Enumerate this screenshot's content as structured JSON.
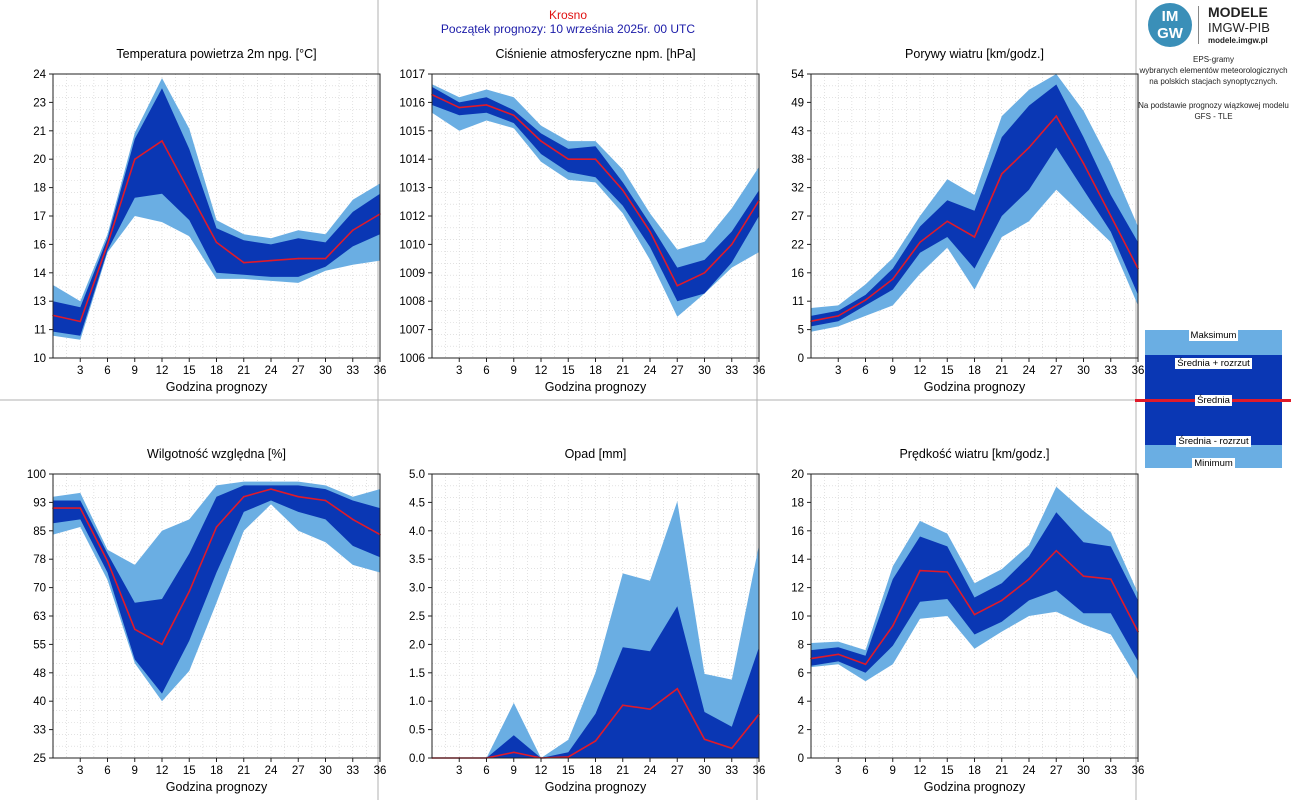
{
  "header": {
    "station": "Krosno",
    "forecast_start": "Początek prognozy: 10 września 2025r. 00 UTC"
  },
  "logo": {
    "badge_top": "IM",
    "badge_bottom": "GW",
    "title": "MODELE",
    "subtitle": "IMGW-PIB",
    "url": "modele.imgw.pl"
  },
  "info": {
    "line1": "EPS-gramy",
    "line2": "wybranych elementów meteorologicznych",
    "line3": "na polskich stacjach  synoptycznych.",
    "line4": "Na podstawie prognozy wiązkowej modelu",
    "line5": "GFS - TLE"
  },
  "legend": {
    "max": "Maksimum",
    "mean_plus": "Średnia + rozrzut",
    "mean": "Średnia",
    "mean_minus": "Średnia - rozrzut",
    "min": "Minimum"
  },
  "colors": {
    "range": "#6aaee3",
    "spread": "#0a37b4",
    "mean": "#e01a2a"
  },
  "chart_data": [
    {
      "type": "area",
      "title": "Temperatura powietrza 2m npg. [°C]",
      "xlabel": "Godzina prognozy",
      "x": [
        0,
        3,
        6,
        9,
        12,
        15,
        18,
        21,
        24,
        27,
        30,
        33,
        36
      ],
      "xticks": [
        "3",
        "6",
        "9",
        "12",
        "15",
        "18",
        "21",
        "24",
        "27",
        "30",
        "33",
        "36"
      ],
      "ylim": [
        10,
        24
      ],
      "yticks": [
        "10",
        "11",
        "13",
        "14",
        "16",
        "17",
        "18",
        "20",
        "21",
        "23",
        "24"
      ],
      "series": [
        {
          "name": "Maksimum",
          "values": [
            13.6,
            12.8,
            16.1,
            21.1,
            23.8,
            21.3,
            16.8,
            16.1,
            15.9,
            16.3,
            16.1,
            17.8,
            18.6
          ]
        },
        {
          "name": "Średnia + rozrzut",
          "values": [
            12.8,
            12.5,
            15.9,
            20.8,
            23.3,
            20.3,
            16.4,
            15.8,
            15.6,
            15.9,
            15.7,
            17.2,
            18.1
          ]
        },
        {
          "name": "Średnia",
          "values": [
            12.1,
            11.8,
            15.6,
            19.8,
            20.7,
            18.2,
            15.7,
            14.7,
            14.8,
            14.9,
            14.9,
            16.3,
            17.1
          ]
        },
        {
          "name": "Średnia - rozrzut",
          "values": [
            11.3,
            11.1,
            15.3,
            17.9,
            18.1,
            16.8,
            14.2,
            14.1,
            14.0,
            14.0,
            14.5,
            15.5,
            16.1
          ]
        },
        {
          "name": "Minimum",
          "values": [
            11.1,
            10.9,
            15.2,
            17.0,
            16.7,
            16.0,
            13.9,
            13.9,
            13.8,
            13.7,
            14.3,
            14.6,
            14.8
          ]
        }
      ]
    },
    {
      "type": "area",
      "title": "Ciśnienie atmosferyczne npm. [hPa]",
      "xlabel": "Godzina prognozy",
      "x": [
        0,
        3,
        6,
        9,
        12,
        15,
        18,
        21,
        24,
        27,
        30,
        33,
        36
      ],
      "xticks": [
        "3",
        "6",
        "9",
        "12",
        "15",
        "18",
        "21",
        "24",
        "27",
        "30",
        "33",
        "36"
      ],
      "ylim": [
        1006,
        1017
      ],
      "yticks": [
        "1006",
        "1007",
        "1008",
        "1009",
        "1010",
        "1012",
        "1013",
        "1014",
        "1015",
        "1016",
        "1017"
      ],
      "series": [
        {
          "name": "Maksimum",
          "values": [
            1016.6,
            1016.1,
            1016.4,
            1016.1,
            1015.0,
            1014.4,
            1014.4,
            1013.3,
            1011.6,
            1010.2,
            1010.5,
            1011.8,
            1013.4
          ]
        },
        {
          "name": "Średnia + rozrzut",
          "values": [
            1016.5,
            1015.9,
            1016.1,
            1015.6,
            1014.7,
            1014.1,
            1014.2,
            1012.8,
            1011.2,
            1009.5,
            1009.8,
            1010.9,
            1012.5
          ]
        },
        {
          "name": "Średnia",
          "values": [
            1016.2,
            1015.7,
            1015.8,
            1015.4,
            1014.4,
            1013.7,
            1013.7,
            1012.5,
            1010.9,
            1008.8,
            1009.3,
            1010.4,
            1012.1
          ]
        },
        {
          "name": "Średnia - rozrzut",
          "values": [
            1015.8,
            1015.4,
            1015.5,
            1015.1,
            1013.9,
            1013.2,
            1013.0,
            1011.9,
            1010.3,
            1008.2,
            1008.5,
            1009.7,
            1011.5
          ]
        },
        {
          "name": "Minimum",
          "values": [
            1015.5,
            1014.8,
            1015.2,
            1014.9,
            1013.6,
            1012.9,
            1012.8,
            1011.6,
            1009.8,
            1007.6,
            1008.5,
            1009.5,
            1010.1
          ]
        }
      ]
    },
    {
      "type": "area",
      "title": "Porywy wiatru [km/godz.]",
      "xlabel": "Godzina prognozy",
      "x": [
        0,
        3,
        6,
        9,
        12,
        15,
        18,
        21,
        24,
        27,
        30,
        33,
        36
      ],
      "xticks": [
        "3",
        "6",
        "9",
        "12",
        "15",
        "18",
        "21",
        "24",
        "27",
        "30",
        "33",
        "36"
      ],
      "ylim": [
        0,
        54
      ],
      "yticks": [
        "0",
        "5",
        "11",
        "16",
        "22",
        "27",
        "32",
        "38",
        "43",
        "49",
        "54"
      ],
      "series": [
        {
          "name": "Maksimum",
          "values": [
            9.5,
            10,
            14,
            19,
            27,
            34,
            31,
            46,
            51,
            54,
            47,
            37,
            25
          ]
        },
        {
          "name": "Średnia + rozrzut",
          "values": [
            8,
            9,
            12,
            17,
            25,
            30,
            28,
            42,
            48,
            52,
            42,
            31,
            22
          ]
        },
        {
          "name": "Średnia",
          "values": [
            7,
            8,
            11,
            15,
            22,
            26,
            23,
            35,
            40,
            46,
            37,
            27,
            17
          ]
        },
        {
          "name": "Średnia - rozrzut",
          "values": [
            6,
            7,
            10,
            13,
            20,
            23,
            17,
            27,
            32,
            40,
            32,
            24,
            12
          ]
        },
        {
          "name": "Minimum",
          "values": [
            5,
            6,
            8,
            10,
            16,
            21,
            13,
            23,
            26,
            32,
            27,
            22,
            10
          ]
        }
      ]
    },
    {
      "type": "area",
      "title": "Wilgotność względna [%]",
      "xlabel": "Godzina prognozy",
      "x": [
        0,
        3,
        6,
        9,
        12,
        15,
        18,
        21,
        24,
        27,
        30,
        33,
        36
      ],
      "xticks": [
        "3",
        "6",
        "9",
        "12",
        "15",
        "18",
        "21",
        "24",
        "27",
        "30",
        "33",
        "36"
      ],
      "ylim": [
        25,
        100
      ],
      "yticks": [
        "25",
        "33",
        "40",
        "48",
        "55",
        "63",
        "70",
        "78",
        "85",
        "93",
        "100"
      ],
      "series": [
        {
          "name": "Maksimum",
          "values": [
            94,
            95,
            80,
            76,
            85,
            88,
            97,
            98,
            98,
            98,
            97,
            94,
            96
          ]
        },
        {
          "name": "Średnia + rozrzut",
          "values": [
            93,
            93,
            79,
            66,
            67,
            79,
            94,
            97,
            97,
            97,
            96,
            93,
            91
          ]
        },
        {
          "name": "Średnia",
          "values": [
            91,
            91,
            77,
            59,
            55,
            69,
            86,
            94,
            96,
            94,
            93,
            88,
            84
          ]
        },
        {
          "name": "Średnia - rozrzut",
          "values": [
            87,
            88,
            74,
            51,
            42,
            56,
            74,
            90,
            93,
            90,
            88,
            81,
            78
          ]
        },
        {
          "name": "Minimum",
          "values": [
            84,
            86,
            72,
            50,
            40,
            48,
            66,
            85,
            92,
            85,
            82,
            76,
            74
          ]
        }
      ]
    },
    {
      "type": "area",
      "title": "Opad [mm]",
      "xlabel": "Godzina prognozy",
      "x": [
        0,
        3,
        6,
        9,
        12,
        15,
        18,
        21,
        24,
        27,
        30,
        33,
        36
      ],
      "xticks": [
        "3",
        "6",
        "9",
        "12",
        "15",
        "18",
        "21",
        "24",
        "27",
        "30",
        "33",
        "36"
      ],
      "ylim": [
        0,
        5.0
      ],
      "yticks": [
        "0.0",
        "0.5",
        "1.0",
        "1.5",
        "2.0",
        "2.5",
        "3.0",
        "3.5",
        "4.0",
        "4.5",
        "5.0"
      ],
      "series": [
        {
          "name": "Maksimum",
          "values": [
            0,
            0,
            0,
            0.97,
            0,
            0.32,
            1.5,
            3.25,
            3.12,
            4.52,
            1.48,
            1.38,
            3.75
          ]
        },
        {
          "name": "Średnia + rozrzut",
          "values": [
            0,
            0,
            0,
            0.4,
            0,
            0.1,
            0.78,
            1.95,
            1.88,
            2.67,
            0.81,
            0.55,
            1.95
          ]
        },
        {
          "name": "Średnia",
          "values": [
            0,
            0,
            0,
            0.1,
            0,
            0.02,
            0.3,
            0.93,
            0.86,
            1.22,
            0.33,
            0.17,
            0.77
          ]
        },
        {
          "name": "Średnia - rozrzut",
          "values": [
            0,
            0,
            0,
            0,
            0,
            0,
            0,
            0,
            0,
            0,
            0,
            0,
            0
          ]
        },
        {
          "name": "Minimum",
          "values": [
            0,
            0,
            0,
            0,
            0,
            0,
            0,
            0,
            0,
            0,
            0,
            0,
            0
          ]
        }
      ]
    },
    {
      "type": "area",
      "title": "Prędkość wiatru [km/godz.]",
      "xlabel": "Godzina prognozy",
      "x": [
        0,
        3,
        6,
        9,
        12,
        15,
        18,
        21,
        24,
        27,
        30,
        33,
        36
      ],
      "xticks": [
        "3",
        "6",
        "9",
        "12",
        "15",
        "18",
        "21",
        "24",
        "27",
        "30",
        "33",
        "36"
      ],
      "ylim": [
        0,
        20
      ],
      "yticks": [
        "0",
        "2",
        "4",
        "6",
        "8",
        "10",
        "12",
        "14",
        "16",
        "18",
        "20"
      ],
      "series": [
        {
          "name": "Maksimum",
          "values": [
            8.1,
            8.2,
            7.6,
            13.5,
            16.7,
            15.8,
            12.3,
            13.3,
            15.0,
            19.1,
            17.4,
            15.9,
            11.6
          ]
        },
        {
          "name": "Średnia + rozrzut",
          "values": [
            7.6,
            7.8,
            7.2,
            12.6,
            15.6,
            14.9,
            11.3,
            12.3,
            14.2,
            17.3,
            15.2,
            14.9,
            11.1
          ]
        },
        {
          "name": "Średnia",
          "values": [
            7.0,
            7.3,
            6.6,
            9.3,
            13.2,
            13.1,
            10.1,
            11.1,
            12.6,
            14.6,
            12.8,
            12.6,
            8.9
          ]
        },
        {
          "name": "Średnia - rozrzut",
          "values": [
            6.5,
            6.8,
            6.0,
            7.9,
            11.0,
            11.2,
            8.7,
            9.6,
            11.1,
            11.8,
            10.2,
            10.2,
            6.8
          ]
        },
        {
          "name": "Minimum",
          "values": [
            6.4,
            6.6,
            5.4,
            6.6,
            9.8,
            10.0,
            7.7,
            8.9,
            10.0,
            10.3,
            9.4,
            8.7,
            5.5
          ]
        }
      ]
    }
  ]
}
